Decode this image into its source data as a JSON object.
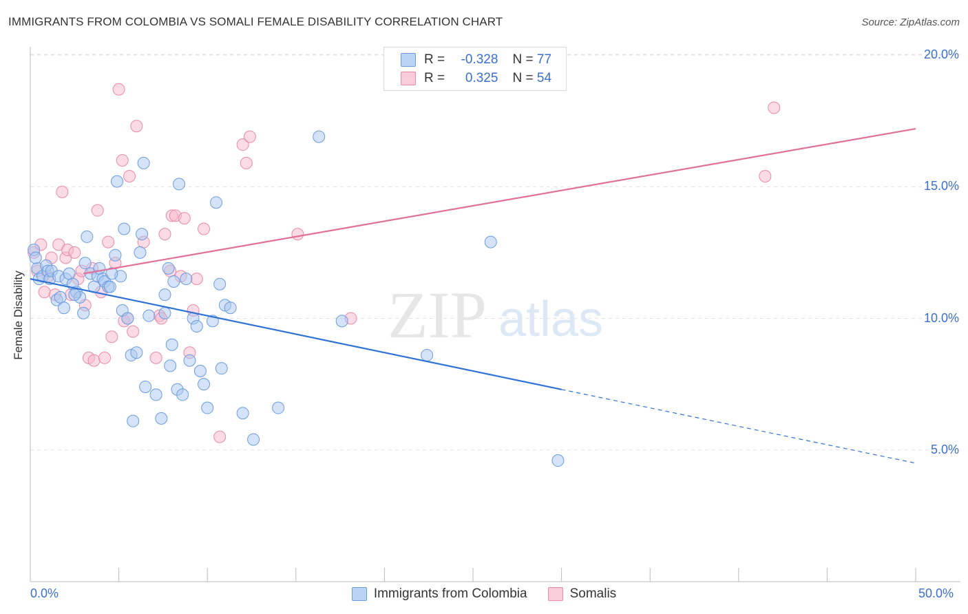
{
  "title": "IMMIGRANTS FROM COLOMBIA VS SOMALI FEMALE DISABILITY CORRELATION CHART",
  "source": "Source: ZipAtlas.com",
  "watermark": {
    "zip": "ZIP",
    "atlas": "atlas"
  },
  "legend": {
    "rows": [
      {
        "r_label": "R =",
        "r_value": "-0.328",
        "n_label": "N =",
        "n_value": "77"
      },
      {
        "r_label": "R =",
        "r_value": "0.325",
        "n_label": "N =",
        "n_value": "54"
      }
    ]
  },
  "colors": {
    "blue_fill": "#a9c8f0",
    "blue_stroke": "#6a9be0",
    "blue_line": "#2f72d6",
    "pink_fill": "#f7b8cc",
    "pink_stroke": "#ea8aa8",
    "pink_line": "#e07098",
    "grid": "#e2e2e2",
    "axis_text": "#3a6fd0"
  },
  "chart_data": {
    "type": "scatter",
    "title": "IMMIGRANTS FROM COLOMBIA VS SOMALI FEMALE DISABILITY CORRELATION CHART",
    "xlabel": "",
    "ylabel": "Female Disability",
    "xlim": [
      0,
      50
    ],
    "ylim": [
      0,
      20.8
    ],
    "x_tick_labels": [
      "0.0%",
      "50.0%"
    ],
    "y_ticks": [
      5,
      10,
      15,
      20
    ],
    "y_tick_labels": [
      "5.0%",
      "10.0%",
      "15.0%",
      "20.0%"
    ],
    "grid": true,
    "legend_position": "top-center",
    "series": [
      {
        "name": "Immigrants from Colombia",
        "r": -0.328,
        "n": 77,
        "trend": {
          "x0": 0,
          "y0": 11.5,
          "x1": 30,
          "y1": 7.3,
          "dashed_to_x": 50,
          "dashed_to_y": 4.5
        },
        "points": [
          [
            0.2,
            12.6
          ],
          [
            0.4,
            11.9
          ],
          [
            0.5,
            11.5
          ],
          [
            0.7,
            11.6
          ],
          [
            0.9,
            12.0
          ],
          [
            1.0,
            11.8
          ],
          [
            1.1,
            11.5
          ],
          [
            1.2,
            11.8
          ],
          [
            1.5,
            10.7
          ],
          [
            1.6,
            11.6
          ],
          [
            1.7,
            10.8
          ],
          [
            1.9,
            10.4
          ],
          [
            2.0,
            11.5
          ],
          [
            2.2,
            11.7
          ],
          [
            2.4,
            11.3
          ],
          [
            2.6,
            11.0
          ],
          [
            2.8,
            10.8
          ],
          [
            3.0,
            10.2
          ],
          [
            3.1,
            12.1
          ],
          [
            3.2,
            13.1
          ],
          [
            3.4,
            11.7
          ],
          [
            3.6,
            11.2
          ],
          [
            3.8,
            11.6
          ],
          [
            3.9,
            11.9
          ],
          [
            4.1,
            11.5
          ],
          [
            4.2,
            11.4
          ],
          [
            4.4,
            11.2
          ],
          [
            4.5,
            11.2
          ],
          [
            4.8,
            12.4
          ],
          [
            4.9,
            15.2
          ],
          [
            5.1,
            11.6
          ],
          [
            5.2,
            10.3
          ],
          [
            5.3,
            13.4
          ],
          [
            5.5,
            10.0
          ],
          [
            5.7,
            8.6
          ],
          [
            5.8,
            6.1
          ],
          [
            6.0,
            8.7
          ],
          [
            6.2,
            12.5
          ],
          [
            6.3,
            13.2
          ],
          [
            6.4,
            15.9
          ],
          [
            6.5,
            7.4
          ],
          [
            6.7,
            10.1
          ],
          [
            7.1,
            7.1
          ],
          [
            7.4,
            6.2
          ],
          [
            7.6,
            10.9
          ],
          [
            7.8,
            11.9
          ],
          [
            7.9,
            8.2
          ],
          [
            8.0,
            9.0
          ],
          [
            8.1,
            11.4
          ],
          [
            8.3,
            7.3
          ],
          [
            8.4,
            15.1
          ],
          [
            8.6,
            7.1
          ],
          [
            8.8,
            11.5
          ],
          [
            9.0,
            8.4
          ],
          [
            9.2,
            10.0
          ],
          [
            9.4,
            9.7
          ],
          [
            9.6,
            8.0
          ],
          [
            9.8,
            7.5
          ],
          [
            10.0,
            6.6
          ],
          [
            10.3,
            9.9
          ],
          [
            10.5,
            14.4
          ],
          [
            10.7,
            11.3
          ],
          [
            10.8,
            8.1
          ],
          [
            11.0,
            10.5
          ],
          [
            11.3,
            10.4
          ],
          [
            12.0,
            6.4
          ],
          [
            12.6,
            5.4
          ],
          [
            14.0,
            6.6
          ],
          [
            16.3,
            16.9
          ],
          [
            17.6,
            9.9
          ],
          [
            22.4,
            8.6
          ],
          [
            26.0,
            12.9
          ],
          [
            29.8,
            4.6
          ],
          [
            0.3,
            12.3
          ],
          [
            4.6,
            11.7
          ],
          [
            2.5,
            10.9
          ],
          [
            7.6,
            10.2
          ]
        ]
      },
      {
        "name": "Somalis",
        "r": 0.325,
        "n": 54,
        "trend": {
          "x0": 3,
          "y0": 11.7,
          "x1": 50,
          "y1": 17.2
        },
        "points": [
          [
            0.2,
            12.5
          ],
          [
            0.4,
            11.8
          ],
          [
            0.6,
            12.8
          ],
          [
            0.8,
            11.0
          ],
          [
            1.0,
            11.6
          ],
          [
            1.2,
            12.3
          ],
          [
            1.4,
            10.9
          ],
          [
            1.6,
            12.8
          ],
          [
            1.8,
            14.8
          ],
          [
            2.0,
            12.3
          ],
          [
            2.1,
            12.6
          ],
          [
            2.3,
            10.9
          ],
          [
            2.5,
            12.5
          ],
          [
            2.7,
            11.5
          ],
          [
            2.9,
            11.8
          ],
          [
            3.1,
            10.5
          ],
          [
            3.3,
            8.5
          ],
          [
            3.5,
            11.9
          ],
          [
            3.6,
            8.4
          ],
          [
            3.8,
            14.1
          ],
          [
            4.0,
            11.0
          ],
          [
            4.2,
            8.5
          ],
          [
            4.4,
            12.9
          ],
          [
            4.6,
            9.3
          ],
          [
            4.8,
            12.1
          ],
          [
            5.0,
            18.7
          ],
          [
            5.2,
            16.0
          ],
          [
            5.3,
            9.9
          ],
          [
            5.5,
            10.0
          ],
          [
            5.6,
            15.4
          ],
          [
            5.8,
            9.5
          ],
          [
            6.0,
            17.3
          ],
          [
            6.4,
            12.9
          ],
          [
            7.1,
            8.5
          ],
          [
            7.3,
            10.1
          ],
          [
            7.4,
            10.0
          ],
          [
            7.6,
            13.2
          ],
          [
            7.9,
            11.8
          ],
          [
            8.0,
            13.9
          ],
          [
            8.2,
            13.9
          ],
          [
            8.5,
            11.6
          ],
          [
            8.7,
            13.8
          ],
          [
            9.0,
            8.7
          ],
          [
            9.2,
            10.3
          ],
          [
            9.4,
            11.5
          ],
          [
            9.8,
            13.4
          ],
          [
            10.7,
            5.5
          ],
          [
            12.0,
            16.6
          ],
          [
            12.2,
            15.9
          ],
          [
            12.4,
            16.9
          ],
          [
            15.1,
            13.2
          ],
          [
            18.1,
            10.0
          ],
          [
            41.5,
            15.4
          ],
          [
            42.0,
            18.0
          ]
        ]
      }
    ]
  },
  "bottom_legend": [
    "Immigrants from Colombia",
    "Somalis"
  ]
}
